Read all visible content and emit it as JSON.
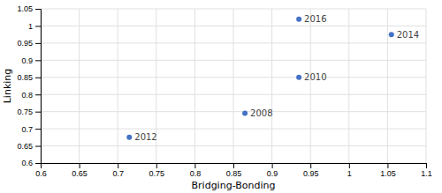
{
  "chart_data": {
    "type": "scatter",
    "x": [
      0.715,
      0.865,
      0.935,
      0.935,
      1.055
    ],
    "values": [
      0.675,
      0.745,
      0.85,
      1.02,
      0.975
    ],
    "labels": [
      "2012",
      "2008",
      "2010",
      "2016",
      "2014"
    ],
    "color": "#4472C4",
    "xlabel": "Bridging-Bonding",
    "ylabel": "Linking",
    "xlim": [
      0.6,
      1.1
    ],
    "ylim": [
      0.6,
      1.05
    ],
    "xticks": [
      0.6,
      0.65,
      0.7,
      0.75,
      0.8,
      0.85,
      0.9,
      0.95,
      1,
      1.05,
      1.1
    ],
    "yticks": [
      0.6,
      0.65,
      0.7,
      0.75,
      0.8,
      0.85,
      0.9,
      0.95,
      1,
      1.05
    ],
    "grid": true
  }
}
